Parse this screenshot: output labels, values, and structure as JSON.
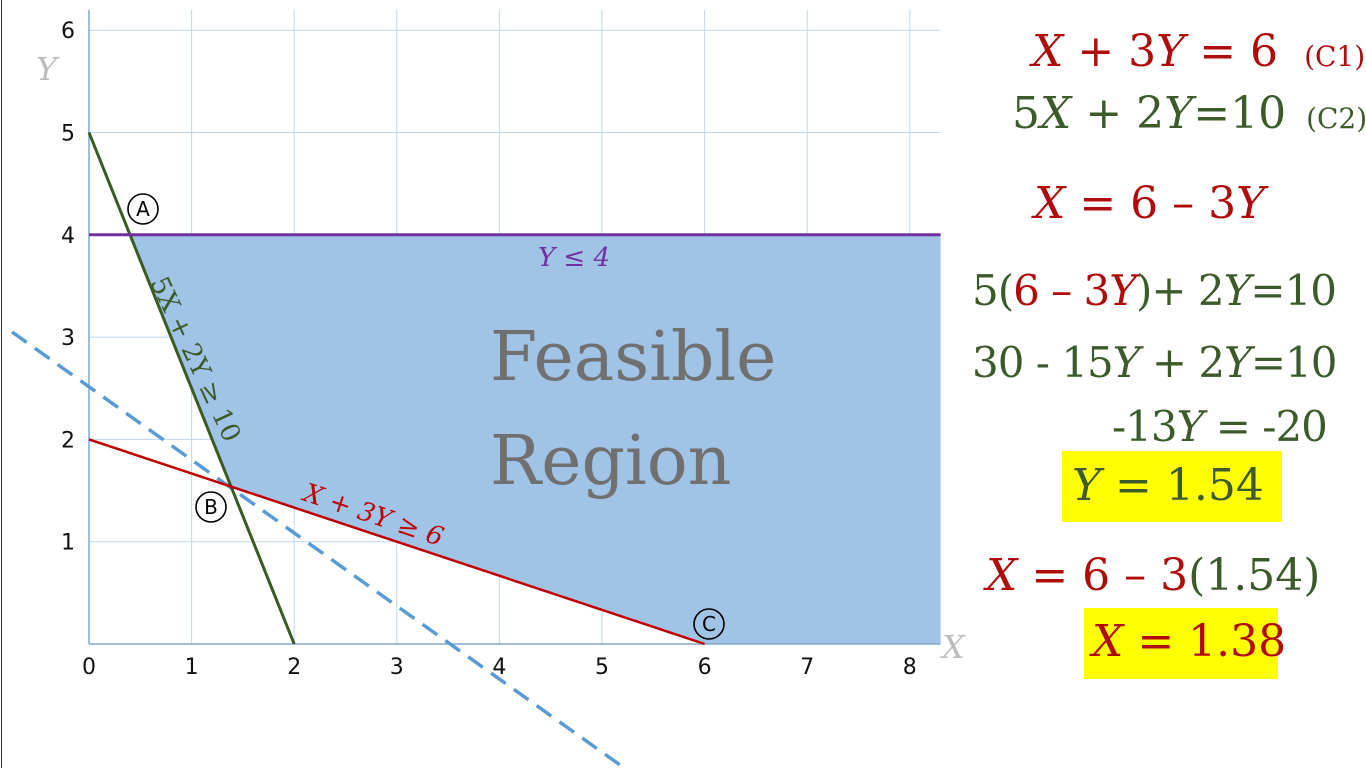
{
  "graph": {
    "x_ticks": [
      "0",
      "1",
      "2",
      "3",
      "4",
      "5",
      "6",
      "7",
      "8"
    ],
    "y_ticks": [
      "1",
      "2",
      "3",
      "4",
      "5",
      "6"
    ],
    "x_axis_name": "X",
    "y_axis_name": "Y",
    "region_label_line1": "Feasible",
    "region_label_line2": "Region",
    "label_y_le_4": "Y ≤ 4",
    "label_c2": "5X + 2Y ≥ 10",
    "label_c1": "X + 3Y ≥ 6",
    "point_a": "A",
    "point_b": "B",
    "point_c": "C",
    "colors": {
      "region": "#a0c3e6",
      "c1_line": "#c00000",
      "c2_line": "#3a5a26",
      "limit_line": "#7030a0",
      "objective_dashed": "#5b9bd5",
      "grid": "#bdd7ee"
    }
  },
  "chart_data": {
    "type": "line",
    "xlim": [
      0,
      8.3
    ],
    "ylim": [
      0,
      6.2
    ],
    "lines": [
      {
        "name": "X + 3Y ≥ 6",
        "points": [
          [
            0,
            2
          ],
          [
            6,
            0
          ]
        ]
      },
      {
        "name": "5X + 2Y ≥ 10",
        "points": [
          [
            0,
            5
          ],
          [
            2,
            0
          ]
        ]
      },
      {
        "name": "Y ≤ 4",
        "points": [
          [
            0,
            4
          ],
          [
            8.3,
            4
          ]
        ]
      },
      {
        "points": [
          [
            -0.75,
            3.05
          ],
          [
            5.2,
            -1.2
          ]
        ],
        "style": "dashed"
      }
    ],
    "feasible_region": [
      [
        0.4,
        4
      ],
      [
        8.3,
        4
      ],
      [
        8.3,
        0
      ],
      [
        6,
        0
      ],
      [
        1.38,
        1.54
      ]
    ],
    "points": [
      {
        "name": "A",
        "x": 0.4,
        "y": 4
      },
      {
        "name": "B",
        "x": 1.38,
        "y": 1.54
      },
      {
        "name": "C",
        "x": 6,
        "y": 0
      }
    ]
  },
  "equations": {
    "eq1": {
      "x": "X",
      "rest": " + 3",
      "y": "Y",
      "tail": " = 6",
      "tag": "(C1)"
    },
    "eq2": {
      "lead": "5",
      "x": "X",
      "mid": " + 2",
      "y": "Y",
      "tail": "=10",
      "tag": "(C2)"
    },
    "eq3": {
      "x": "X",
      "mid": " = 6 – 3",
      "y": "Y"
    },
    "eq4": {
      "lead": "5(",
      "inner": "6 – 3",
      "y": "Y",
      "close": ")",
      "mid": "+ 2",
      "y2": "Y",
      "tail": "=10"
    },
    "eq5": {
      "lead": "30 - 15",
      "y": "Y",
      "mid": " + 2",
      "y2": "Y",
      "tail": "=10"
    },
    "eq6": {
      "lead": "-13",
      "y": "Y",
      "tail": " = -20"
    },
    "eq7": {
      "y": "Y",
      "tail": " = 1.54"
    },
    "eq8": {
      "x": "X",
      "mid": " = 6 – 3",
      "paren": "(1.54)"
    },
    "eq9": {
      "x": "X",
      "tail": " = 1.38"
    }
  }
}
